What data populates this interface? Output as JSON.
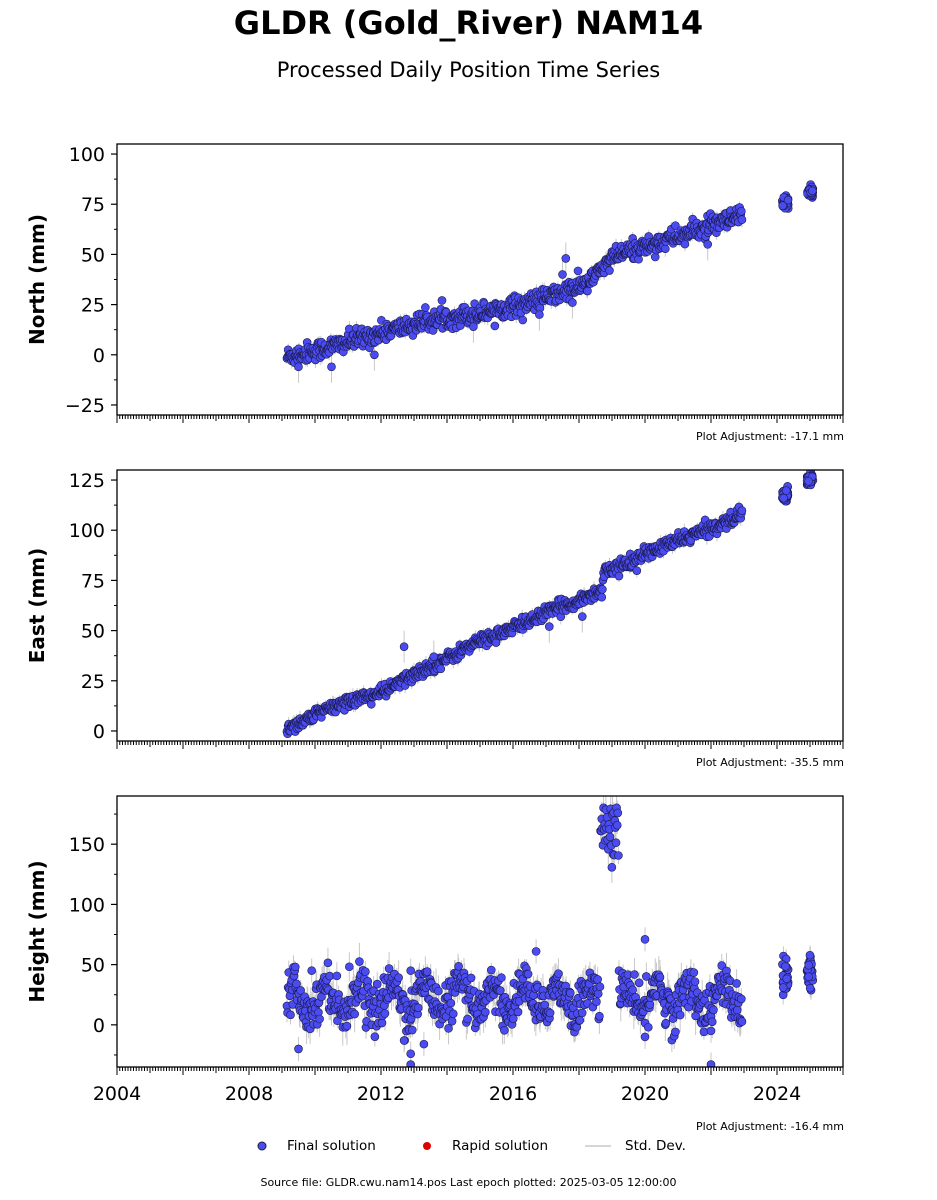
{
  "header": {
    "title": "GLDR (Gold_River) NAM14",
    "subtitle": "Processed Daily Position Time Series"
  },
  "footer": {
    "source": "Source file: GLDR.cwu.nam14.pos  Last epoch plotted: 2025-03-05 12:00:00"
  },
  "legend": {
    "final": "Final solution",
    "rapid": "Rapid solution",
    "std": "Std. Dev."
  },
  "colors": {
    "final": "#4b4bf2",
    "final_edge": "#1a1a4a",
    "rapid": "#dd0000",
    "std": "#c8c8c8"
  },
  "chart_data": [
    {
      "type": "scatter",
      "name": "north",
      "ylabel": "North (mm)",
      "xlim": [
        2004,
        2026
      ],
      "ylim": [
        -30,
        105
      ],
      "yticks": [
        -25,
        0,
        25,
        50,
        75,
        100
      ],
      "ytick_labels": [
        "−25",
        "0",
        "25",
        "50",
        "75",
        "100"
      ],
      "plot_adjustment": "Plot Adjustment: -17.1 mm",
      "trend": [
        [
          2009.15,
          -1
        ],
        [
          2010.5,
          4
        ],
        [
          2012.0,
          11
        ],
        [
          2013.5,
          17
        ],
        [
          2015.0,
          21
        ],
        [
          2016.5,
          26
        ],
        [
          2017.5,
          31
        ],
        [
          2018.3,
          36
        ],
        [
          2018.8,
          45
        ],
        [
          2019.2,
          50
        ],
        [
          2020.0,
          54
        ],
        [
          2021.0,
          59
        ],
        [
          2022.0,
          64
        ],
        [
          2022.95,
          69
        ]
      ],
      "scatter_sd": 2.4,
      "clusters": [
        [
          2024.25,
          76
        ],
        [
          2025.0,
          81
        ]
      ],
      "outliers": [
        [
          2017.6,
          48
        ],
        [
          2017.5,
          40
        ],
        [
          2017.8,
          26
        ],
        [
          2014.8,
          14
        ],
        [
          2010.5,
          -6
        ],
        [
          2011.8,
          0
        ],
        [
          2009.5,
          -6
        ],
        [
          2021.9,
          55
        ],
        [
          2016.8,
          20
        ]
      ]
    },
    {
      "type": "scatter",
      "name": "east",
      "ylabel": "East (mm)",
      "xlim": [
        2004,
        2026
      ],
      "ylim": [
        -5,
        130
      ],
      "yticks": [
        0,
        25,
        50,
        75,
        100,
        125
      ],
      "ytick_labels": [
        "0",
        "25",
        "50",
        "75",
        "100",
        "125"
      ],
      "plot_adjustment": "Plot Adjustment: -35.5 mm",
      "trend": [
        [
          2009.15,
          1
        ],
        [
          2010.0,
          8
        ],
        [
          2011.0,
          15
        ],
        [
          2012.0,
          19
        ],
        [
          2013.0,
          28
        ],
        [
          2014.0,
          36
        ],
        [
          2015.0,
          45
        ],
        [
          2016.0,
          51
        ],
        [
          2017.0,
          59
        ],
        [
          2018.0,
          65
        ],
        [
          2018.7,
          70
        ],
        [
          2018.75,
          80
        ],
        [
          2019.3,
          82
        ],
        [
          2020.0,
          88
        ],
        [
          2021.0,
          95
        ],
        [
          2022.0,
          101
        ],
        [
          2022.95,
          108
        ]
      ],
      "scatter_sd": 1.6,
      "clusters": [
        [
          2024.25,
          118
        ],
        [
          2025.0,
          125
        ]
      ],
      "outliers": [
        [
          2012.7,
          42
        ],
        [
          2013.6,
          37
        ],
        [
          2018.1,
          57
        ],
        [
          2017.1,
          52
        ]
      ]
    },
    {
      "type": "scatter",
      "name": "height",
      "ylabel": "Height (mm)",
      "xlim": [
        2004,
        2026
      ],
      "ylim": [
        -35,
        190
      ],
      "yticks": [
        0,
        50,
        100,
        150
      ],
      "ytick_labels": [
        "0",
        "50",
        "100",
        "150"
      ],
      "xticks": [
        2004,
        2008,
        2012,
        2016,
        2020,
        2024
      ],
      "xtick_labels": [
        "2004",
        "2008",
        "2012",
        "2016",
        "2020",
        "2024"
      ],
      "plot_adjustment": "Plot Adjustment: -16.4 mm",
      "baseline": 22,
      "amplitude": 12,
      "scatter_sd": 9,
      "height_anomaly": [
        2018.65,
        2019.2,
        160
      ],
      "clusters": [
        [
          2024.25,
          38
        ],
        [
          2025.0,
          45
        ]
      ],
      "outliers": [
        [
          2009.9,
          45
        ],
        [
          2012.9,
          45
        ],
        [
          2016.7,
          61
        ],
        [
          2020.0,
          71
        ],
        [
          2022.0,
          -5
        ],
        [
          2022.0,
          -33
        ],
        [
          2012.9,
          -33
        ],
        [
          2020.1,
          -2
        ],
        [
          2020.0,
          -10
        ],
        [
          2012.9,
          -24
        ],
        [
          2013.3,
          -16
        ],
        [
          2012.7,
          -13
        ],
        [
          2009.5,
          -20
        ]
      ]
    }
  ]
}
